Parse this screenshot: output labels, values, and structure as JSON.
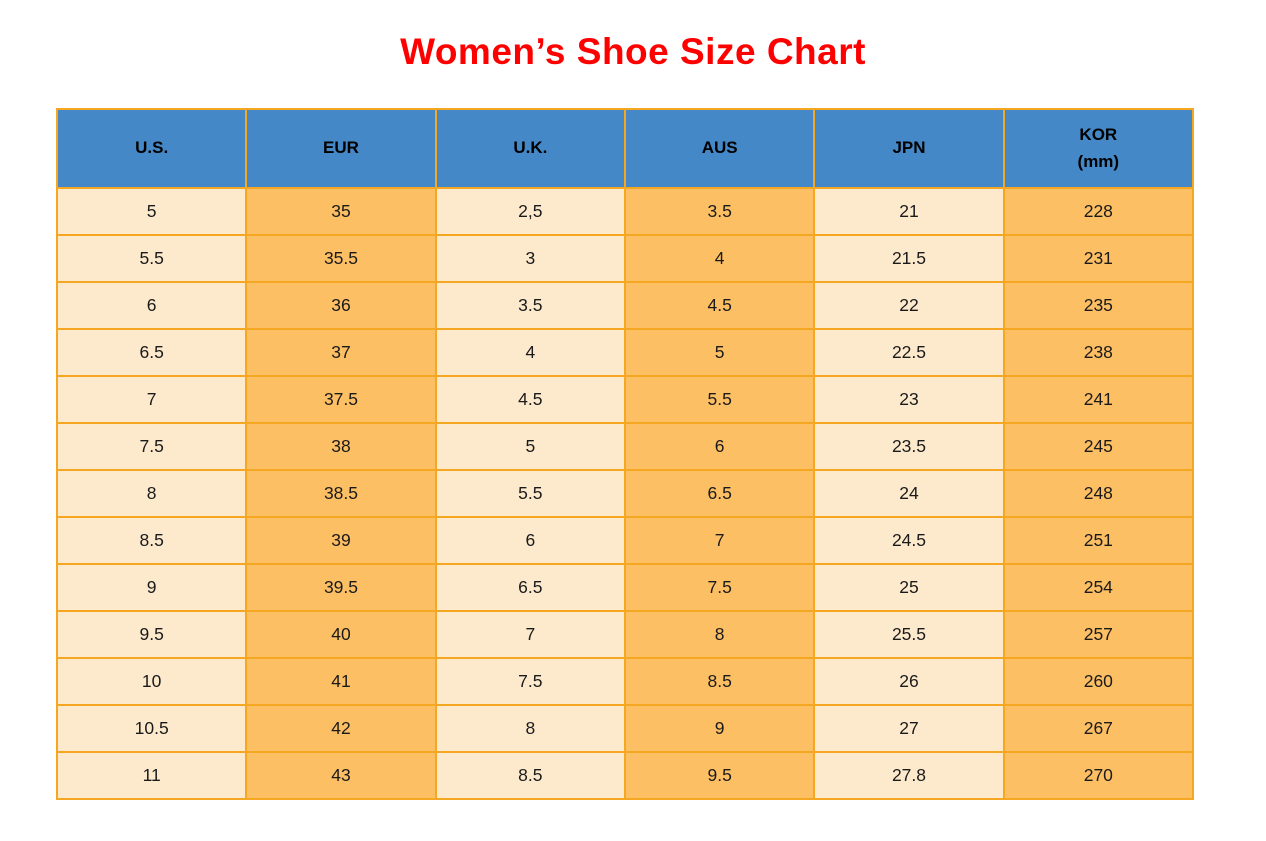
{
  "title": "Women’s Shoe Size Chart",
  "colors": {
    "title_red": "#ff0000",
    "header_blue": "#4488c7",
    "cell_cream": "#fdeacd",
    "cell_orange": "#fdbf63",
    "border_orange": "#f6a721",
    "text_dark": "#1a1a1a"
  },
  "chart_data": {
    "type": "table",
    "title": "Women’s Shoe Size Chart",
    "columns": [
      {
        "key": "us",
        "lines": [
          "U.S."
        ]
      },
      {
        "key": "eur",
        "lines": [
          "EUR"
        ]
      },
      {
        "key": "uk",
        "lines": [
          "U.K."
        ]
      },
      {
        "key": "aus",
        "lines": [
          "AUS"
        ]
      },
      {
        "key": "jpn",
        "lines": [
          "JPN"
        ]
      },
      {
        "key": "kor-mm",
        "lines": [
          "KOR",
          "(mm)"
        ]
      }
    ],
    "rows": [
      [
        "5",
        "35",
        "2,5",
        "3.5",
        "21",
        "228"
      ],
      [
        "5.5",
        "35.5",
        "3",
        "4",
        "21.5",
        "231"
      ],
      [
        "6",
        "36",
        "3.5",
        "4.5",
        "22",
        "235"
      ],
      [
        "6.5",
        "37",
        "4",
        "5",
        "22.5",
        "238"
      ],
      [
        "7",
        "37.5",
        "4.5",
        "5.5",
        "23",
        "241"
      ],
      [
        "7.5",
        "38",
        "5",
        "6",
        "23.5",
        "245"
      ],
      [
        "8",
        "38.5",
        "5.5",
        "6.5",
        "24",
        "248"
      ],
      [
        "8.5",
        "39",
        "6",
        "7",
        "24.5",
        "251"
      ],
      [
        "9",
        "39.5",
        "6.5",
        "7.5",
        "25",
        "254"
      ],
      [
        "9.5",
        "40",
        "7",
        "8",
        "25.5",
        "257"
      ],
      [
        "10",
        "41",
        "7.5",
        "8.5",
        "26",
        "260"
      ],
      [
        "10.5",
        "42",
        "8",
        "9",
        "27",
        "267"
      ],
      [
        "11",
        "43",
        "8.5",
        "9.5",
        "27.8",
        "270"
      ]
    ]
  }
}
